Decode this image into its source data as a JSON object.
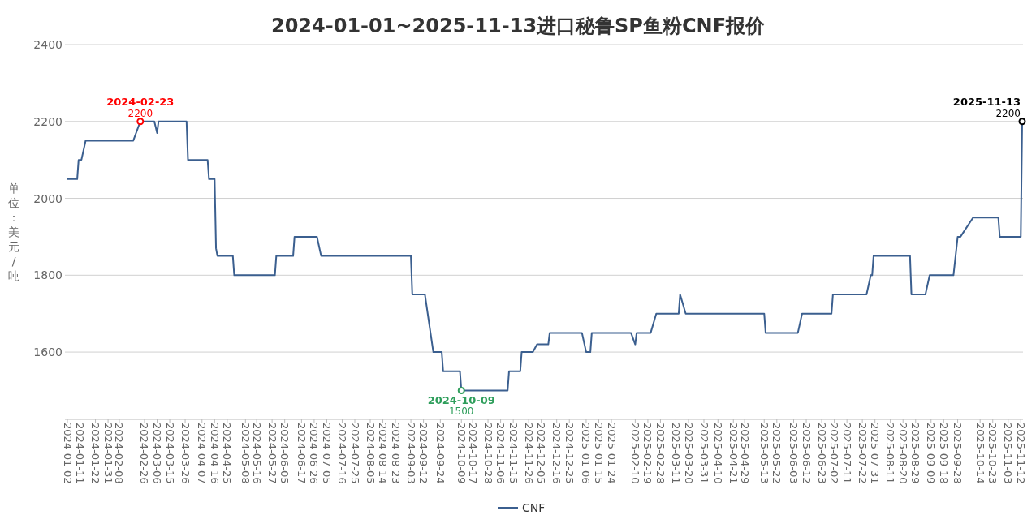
{
  "chart_data": {
    "type": "line",
    "title": "2024-01-01~2025-11-13进口秘鲁SP鱼粉CNF报价",
    "ylabel": "单位：美元/吨",
    "series": [
      {
        "name": "CNF",
        "color": "#3b5f8f",
        "x": [
          "2024-01-02",
          "2024-01-09",
          "2024-01-10",
          "2024-01-12",
          "2024-01-15",
          "2024-02-18",
          "2024-02-23",
          "2024-03-04",
          "2024-03-06",
          "2024-03-07",
          "2024-03-27",
          "2024-03-28",
          "2024-04-11",
          "2024-04-12",
          "2024-04-16",
          "2024-04-17",
          "2024-04-18",
          "2024-04-29",
          "2024-04-30",
          "2024-05-29",
          "2024-05-30",
          "2024-06-11",
          "2024-06-12",
          "2024-06-28",
          "2024-07-01",
          "2024-09-03",
          "2024-09-04",
          "2024-09-13",
          "2024-09-19",
          "2024-09-25",
          "2024-09-26",
          "2024-10-08",
          "2024-10-09",
          "2024-11-11",
          "2024-11-12",
          "2024-11-20",
          "2024-11-21",
          "2024-11-29",
          "2024-12-02",
          "2024-12-10",
          "2024-12-11",
          "2025-01-03",
          "2025-01-06",
          "2025-01-09",
          "2025-01-10",
          "2025-02-07",
          "2025-02-10",
          "2025-02-11",
          "2025-02-21",
          "2025-02-25",
          "2025-03-13",
          "2025-03-14",
          "2025-03-18",
          "2025-05-13",
          "2025-05-14",
          "2025-06-06",
          "2025-06-09",
          "2025-06-30",
          "2025-07-01",
          "2025-07-25",
          "2025-07-28",
          "2025-07-29",
          "2025-07-30",
          "2025-08-25",
          "2025-08-26",
          "2025-09-05",
          "2025-09-08",
          "2025-09-25",
          "2025-09-28",
          "2025-09-30",
          "2025-10-09",
          "2025-10-27",
          "2025-10-28",
          "2025-11-12",
          "2025-11-13"
        ],
        "values": [
          2050,
          2050,
          2100,
          2100,
          2150,
          2150,
          2200,
          2200,
          2170,
          2200,
          2200,
          2100,
          2100,
          2050,
          2050,
          1870,
          1850,
          1850,
          1800,
          1800,
          1850,
          1850,
          1900,
          1900,
          1850,
          1850,
          1750,
          1750,
          1600,
          1600,
          1550,
          1550,
          1500,
          1500,
          1550,
          1550,
          1600,
          1600,
          1620,
          1620,
          1650,
          1650,
          1600,
          1600,
          1650,
          1650,
          1620,
          1650,
          1650,
          1700,
          1700,
          1750,
          1700,
          1700,
          1650,
          1650,
          1700,
          1700,
          1750,
          1750,
          1800,
          1800,
          1850,
          1850,
          1750,
          1750,
          1800,
          1800,
          1900,
          1900,
          1950,
          1950,
          1900,
          1900,
          2200
        ]
      }
    ],
    "xlim": [
      "2024-01-02",
      "2025-11-13"
    ],
    "xticks": [
      "2024-01-02",
      "2024-01-11",
      "2024-01-22",
      "2024-01-31",
      "2024-02-08",
      "2024-02-26",
      "2024-03-06",
      "2024-03-15",
      "2024-03-26",
      "2024-04-07",
      "2024-04-16",
      "2024-04-25",
      "2024-05-08",
      "2024-05-16",
      "2024-05-27",
      "2024-06-05",
      "2024-06-17",
      "2024-06-26",
      "2024-07-05",
      "2024-07-16",
      "2024-07-25",
      "2024-08-05",
      "2024-08-14",
      "2024-08-23",
      "2024-09-03",
      "2024-09-12",
      "2024-09-24",
      "2024-10-09",
      "2024-10-17",
      "2024-10-28",
      "2024-11-06",
      "2024-11-15",
      "2024-11-26",
      "2024-12-05",
      "2024-12-16",
      "2024-12-25",
      "2025-01-06",
      "2025-01-15",
      "2025-01-24",
      "2025-02-10",
      "2025-02-19",
      "2025-02-28",
      "2025-03-11",
      "2025-03-20",
      "2025-03-31",
      "2025-04-10",
      "2025-04-21",
      "2025-04-29",
      "2025-05-13",
      "2025-05-22",
      "2025-06-03",
      "2025-06-12",
      "2025-06-23",
      "2025-07-02",
      "2025-07-11",
      "2025-07-22",
      "2025-07-31",
      "2025-08-11",
      "2025-08-20",
      "2025-08-29",
      "2025-09-09",
      "2025-09-18",
      "2025-09-28",
      "2025-10-14",
      "2025-10-23",
      "2025-11-03",
      "2025-11-12"
    ],
    "ylim": [
      1425,
      2400
    ],
    "yticks": [
      1600,
      1800,
      2000,
      2200,
      2400
    ],
    "grid": "y",
    "legend": "bottom",
    "marker": "none",
    "line_style": "solid",
    "annotations": [
      {
        "text": "2024-02-23",
        "x": "2024-02-23",
        "y": 2200
      },
      {
        "text": "2200",
        "x": "2024-02-23",
        "y": 2200
      },
      {
        "text": "2024-10-09",
        "x": "2024-10-09",
        "y": 1500
      },
      {
        "text": "1500",
        "x": "2024-10-09",
        "y": 1500
      },
      {
        "text": "2025-11-13",
        "x": "2025-11-13",
        "y": 2200
      },
      {
        "text": "2200",
        "x": "2025-11-13",
        "y": 2200
      }
    ]
  }
}
